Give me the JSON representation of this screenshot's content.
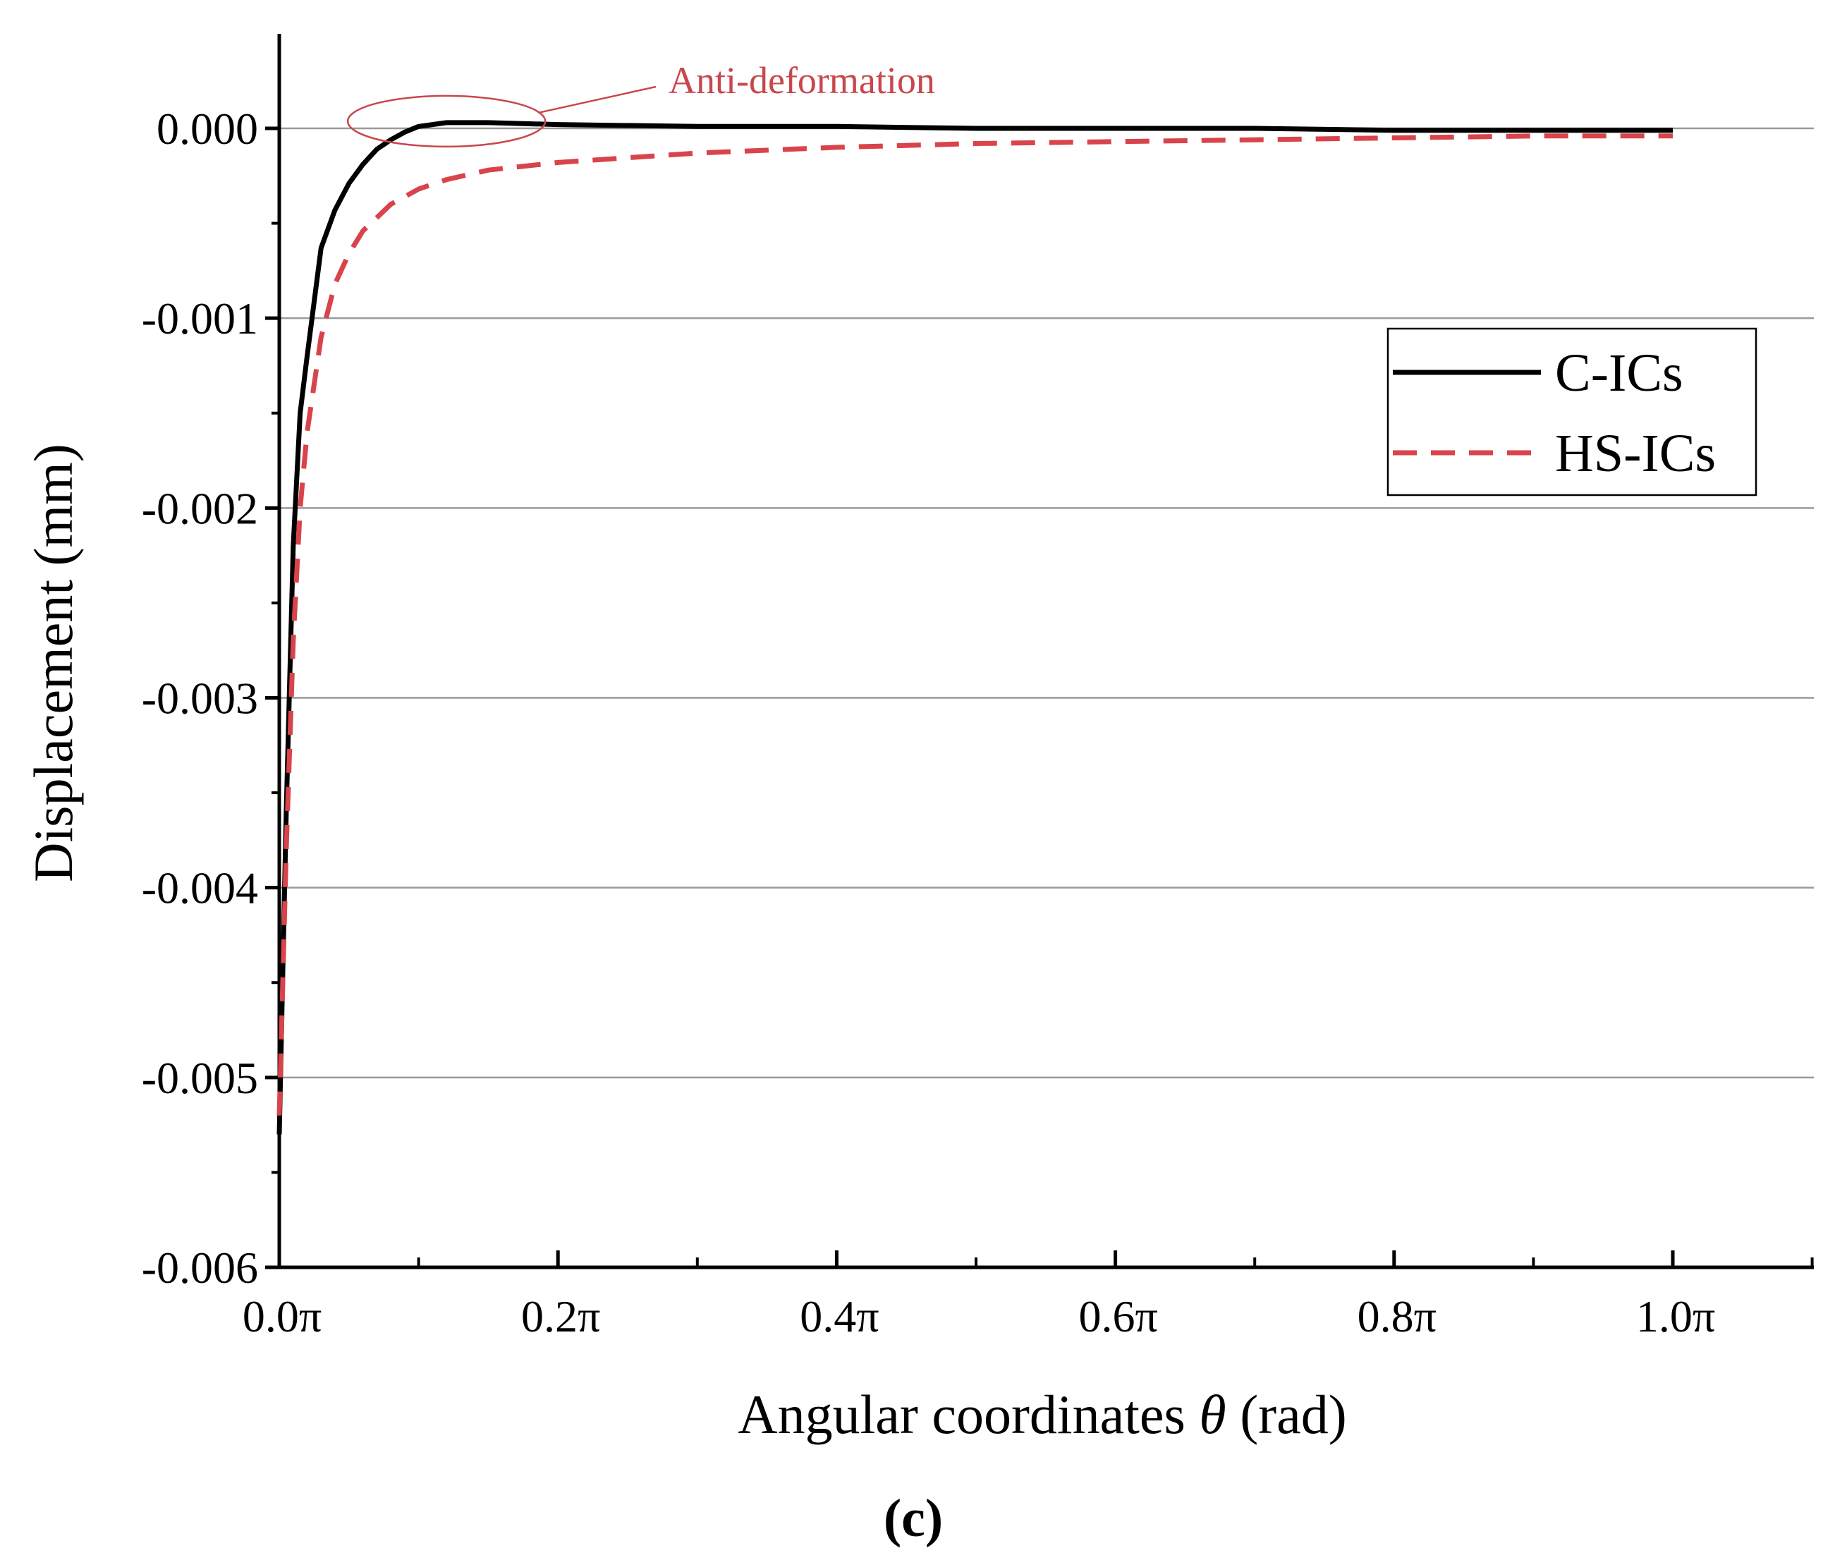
{
  "chart_data": {
    "type": "line",
    "title": "",
    "xlabel": "Angular coordinates",
    "xlabel_symbol": "θ",
    "xlabel_unit": " (rad)",
    "ylabel": "Displacement (mm)",
    "xlim": [
      0,
      1.1
    ],
    "ylim": [
      -0.006,
      0.0005
    ],
    "x_ticks": [
      0,
      0.2,
      0.4,
      0.6,
      0.8,
      1.0
    ],
    "x_tick_labels": [
      "0.0π",
      "0.2π",
      "0.4π",
      "0.6π",
      "0.8π",
      "1.0π"
    ],
    "y_ticks": [
      0,
      -0.001,
      -0.002,
      -0.003,
      -0.004,
      -0.005,
      -0.006
    ],
    "y_tick_labels": [
      "0.000",
      "-0.001",
      "-0.002",
      "-0.003",
      "-0.004",
      "-0.005",
      "-0.006"
    ],
    "grid": "horizontal",
    "legend_position": "top-right",
    "series": [
      {
        "name": "C-ICs",
        "color": "#000000",
        "style": "solid",
        "x": [
          0,
          0.005,
          0.01,
          0.015,
          0.02,
          0.03,
          0.04,
          0.05,
          0.06,
          0.07,
          0.08,
          0.09,
          0.1,
          0.11,
          0.12,
          0.15,
          0.2,
          0.3,
          0.4,
          0.5,
          0.6,
          0.7,
          0.8,
          0.9,
          1.0
        ],
        "y": [
          -0.0053,
          -0.0036,
          -0.0022,
          -0.0015,
          -0.0012,
          -0.00063,
          -0.00043,
          -0.00029,
          -0.00019,
          -0.00011,
          -6e-05,
          -2e-05,
          1e-05,
          2e-05,
          3e-05,
          3e-05,
          2e-05,
          1e-05,
          1e-05,
          0.0,
          0.0,
          0.0,
          -1e-05,
          -1e-05,
          -1e-05
        ]
      },
      {
        "name": "HS-ICs",
        "color": "#d9434b",
        "style": "dashed",
        "x": [
          0,
          0.005,
          0.01,
          0.015,
          0.02,
          0.03,
          0.04,
          0.05,
          0.06,
          0.08,
          0.1,
          0.12,
          0.15,
          0.2,
          0.3,
          0.4,
          0.5,
          0.6,
          0.7,
          0.8,
          0.9,
          1.0
        ],
        "y": [
          -0.0052,
          -0.0038,
          -0.0027,
          -0.002,
          -0.0016,
          -0.0011,
          -0.00082,
          -0.00066,
          -0.00054,
          -0.0004,
          -0.00032,
          -0.00027,
          -0.00022,
          -0.00018,
          -0.00013,
          -0.0001,
          -8e-05,
          -7e-05,
          -6e-05,
          -5e-05,
          -4e-05,
          -4e-05
        ]
      }
    ],
    "annotations": [
      {
        "text": "Anti-deformation",
        "color": "#c8474d",
        "target_x": 0.12,
        "target_y": 3e-05
      }
    ]
  },
  "panel_label": "(c)"
}
